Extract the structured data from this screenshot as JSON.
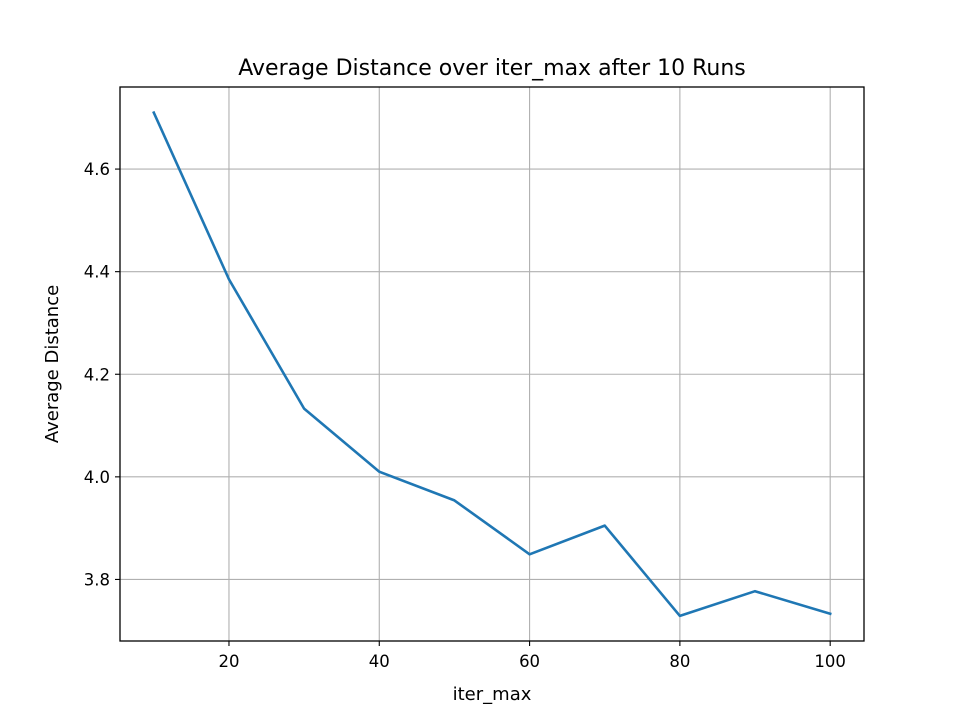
{
  "chart_data": {
    "type": "line",
    "title": "Average Distance over iter_max after 10 Runs",
    "xlabel": "iter_max",
    "ylabel": "Average Distance",
    "xlim": [
      5.5,
      104.5
    ],
    "ylim": [
      3.68,
      4.76
    ],
    "grid": true,
    "x_ticks": [
      20,
      40,
      60,
      80,
      100
    ],
    "y_ticks": [
      3.8,
      4.0,
      4.2,
      4.4,
      4.6
    ],
    "x_tick_labels": [
      "20",
      "40",
      "60",
      "80",
      "100"
    ],
    "y_tick_labels": [
      "3.8",
      "4.0",
      "4.2",
      "4.4",
      "4.6"
    ],
    "series": [
      {
        "color": "#1f77b4",
        "x": [
          10,
          20,
          30,
          40,
          50,
          60,
          70,
          80,
          90,
          100
        ],
        "values": [
          4.71,
          4.385,
          4.133,
          4.01,
          3.954,
          3.849,
          3.905,
          3.729,
          3.777,
          3.733
        ]
      }
    ]
  }
}
